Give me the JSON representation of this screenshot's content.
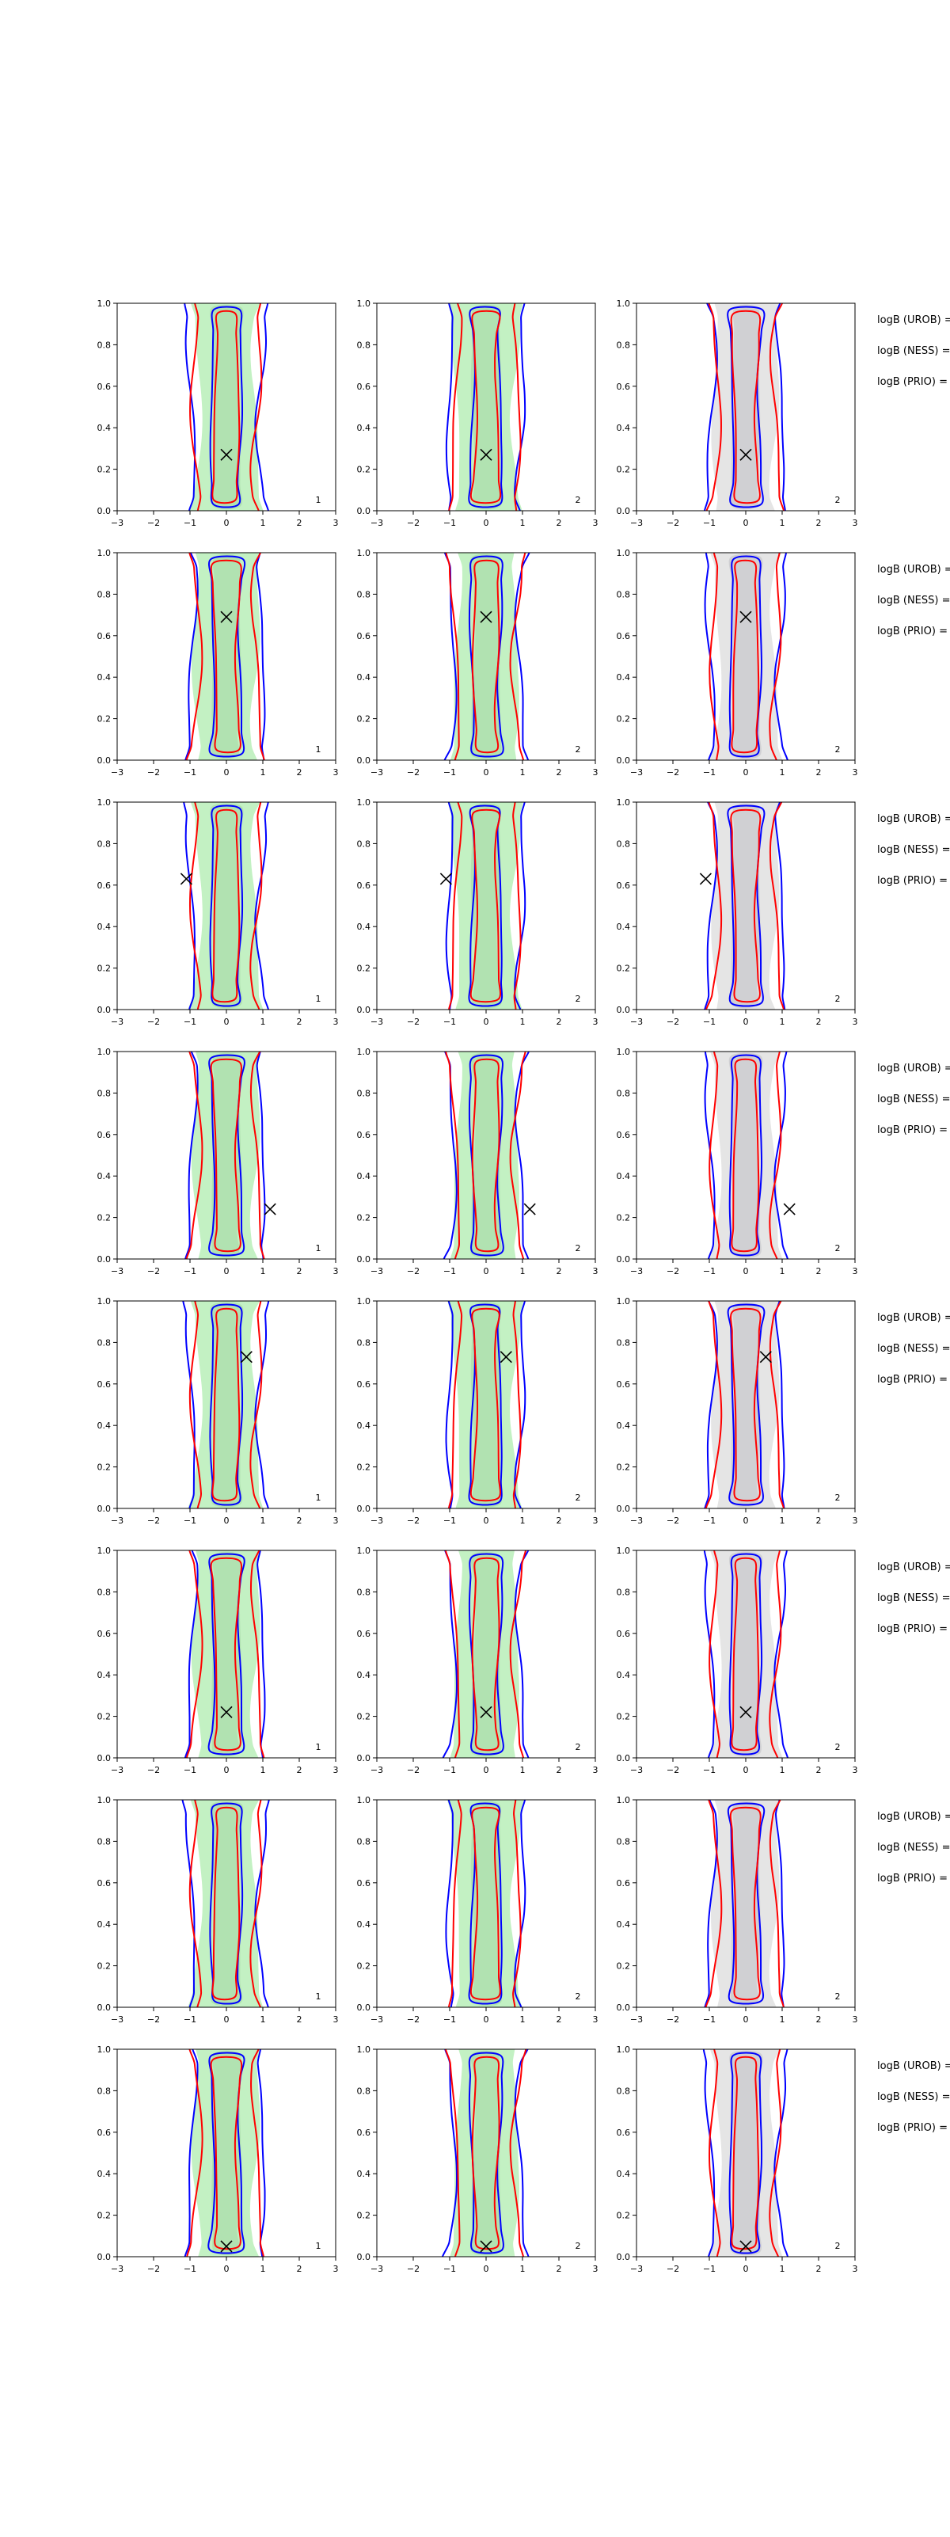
{
  "figure": {
    "rows": 8,
    "cols": 3,
    "xlim": [
      -3,
      3
    ],
    "ylim": [
      0,
      1
    ],
    "xticks": [
      "−3",
      "−2",
      "−1",
      "0",
      "1",
      "2",
      "3"
    ],
    "yticks": [
      "0.0",
      "0.2",
      "0.4",
      "0.6",
      "0.8",
      "1.0"
    ],
    "panel_labels": [
      "1",
      "2",
      "2"
    ],
    "side_labels": [
      "logB (UROB) =",
      "logB (NESS) =",
      "logB (PRIO) ="
    ],
    "colors": {
      "outer_contour": "#0000ff",
      "inner_contour": "#ff0000",
      "fill_col1": "#b9efb9",
      "fill_col2": "#b9efb9",
      "fill_col3": "#dcdcdc",
      "marker": "#000000"
    }
  },
  "chart_data": [
    {
      "type": "contour",
      "panel": "row1-col1",
      "label": "1",
      "marker": {
        "x": 0.0,
        "y": 0.27
      },
      "xlim": [
        -3,
        3
      ],
      "ylim": [
        0,
        1
      ]
    },
    {
      "type": "contour",
      "panel": "row1-col2",
      "label": "2",
      "marker": {
        "x": 0.0,
        "y": 0.27
      },
      "xlim": [
        -3,
        3
      ],
      "ylim": [
        0,
        1
      ]
    },
    {
      "type": "contour",
      "panel": "row1-col3",
      "label": "2",
      "marker": {
        "x": 0.0,
        "y": 0.27
      },
      "xlim": [
        -3,
        3
      ],
      "ylim": [
        0,
        1
      ]
    },
    {
      "type": "contour",
      "panel": "row2-col1",
      "label": "1",
      "marker": {
        "x": 0.0,
        "y": 0.69
      },
      "xlim": [
        -3,
        3
      ],
      "ylim": [
        0,
        1
      ]
    },
    {
      "type": "contour",
      "panel": "row2-col2",
      "label": "2",
      "marker": {
        "x": 0.0,
        "y": 0.69
      },
      "xlim": [
        -3,
        3
      ],
      "ylim": [
        0,
        1
      ]
    },
    {
      "type": "contour",
      "panel": "row2-col3",
      "label": "2",
      "marker": {
        "x": 0.0,
        "y": 0.69
      },
      "xlim": [
        -3,
        3
      ],
      "ylim": [
        0,
        1
      ]
    },
    {
      "type": "contour",
      "panel": "row3-col1",
      "label": "1",
      "marker": {
        "x": -1.1,
        "y": 0.63
      },
      "xlim": [
        -3,
        3
      ],
      "ylim": [
        0,
        1
      ]
    },
    {
      "type": "contour",
      "panel": "row3-col2",
      "label": "2",
      "marker": {
        "x": -1.1,
        "y": 0.63
      },
      "xlim": [
        -3,
        3
      ],
      "ylim": [
        0,
        1
      ]
    },
    {
      "type": "contour",
      "panel": "row3-col3",
      "label": "2",
      "marker": {
        "x": -1.1,
        "y": 0.63
      },
      "xlim": [
        -3,
        3
      ],
      "ylim": [
        0,
        1
      ]
    },
    {
      "type": "contour",
      "panel": "row4-col1",
      "label": "1",
      "marker": {
        "x": 1.2,
        "y": 0.24
      },
      "xlim": [
        -3,
        3
      ],
      "ylim": [
        0,
        1
      ]
    },
    {
      "type": "contour",
      "panel": "row4-col2",
      "label": "2",
      "marker": {
        "x": 1.2,
        "y": 0.24
      },
      "xlim": [
        -3,
        3
      ],
      "ylim": [
        0,
        1
      ]
    },
    {
      "type": "contour",
      "panel": "row4-col3",
      "label": "2",
      "marker": {
        "x": 1.2,
        "y": 0.24
      },
      "xlim": [
        -3,
        3
      ],
      "ylim": [
        0,
        1
      ]
    },
    {
      "type": "contour",
      "panel": "row5-col1",
      "label": "1",
      "marker": {
        "x": 0.55,
        "y": 0.73
      },
      "xlim": [
        -3,
        3
      ],
      "ylim": [
        0,
        1
      ]
    },
    {
      "type": "contour",
      "panel": "row5-col2",
      "label": "2",
      "marker": {
        "x": 0.55,
        "y": 0.73
      },
      "xlim": [
        -3,
        3
      ],
      "ylim": [
        0,
        1
      ]
    },
    {
      "type": "contour",
      "panel": "row5-col3",
      "label": "2",
      "marker": {
        "x": 0.55,
        "y": 0.73
      },
      "xlim": [
        -3,
        3
      ],
      "ylim": [
        0,
        1
      ]
    },
    {
      "type": "contour",
      "panel": "row6-col1",
      "label": "1",
      "marker": {
        "x": 0.0,
        "y": 0.22
      },
      "xlim": [
        -3,
        3
      ],
      "ylim": [
        0,
        1
      ]
    },
    {
      "type": "contour",
      "panel": "row6-col2",
      "label": "2",
      "marker": {
        "x": 0.0,
        "y": 0.22
      },
      "xlim": [
        -3,
        3
      ],
      "ylim": [
        0,
        1
      ]
    },
    {
      "type": "contour",
      "panel": "row6-col3",
      "label": "2",
      "marker": {
        "x": 0.0,
        "y": 0.22
      },
      "xlim": [
        -3,
        3
      ],
      "ylim": [
        0,
        1
      ]
    },
    {
      "type": "contour",
      "panel": "row7-col1",
      "label": "1",
      "marker": null,
      "xlim": [
        -3,
        3
      ],
      "ylim": [
        0,
        1
      ]
    },
    {
      "type": "contour",
      "panel": "row7-col2",
      "label": "2",
      "marker": null,
      "xlim": [
        -3,
        3
      ],
      "ylim": [
        0,
        1
      ]
    },
    {
      "type": "contour",
      "panel": "row7-col3",
      "label": "2",
      "marker": null,
      "xlim": [
        -3,
        3
      ],
      "ylim": [
        0,
        1
      ]
    },
    {
      "type": "contour",
      "panel": "row8-col1",
      "label": "1",
      "marker": {
        "x": 0.0,
        "y": 0.05
      },
      "xlim": [
        -3,
        3
      ],
      "ylim": [
        0,
        1
      ]
    },
    {
      "type": "contour",
      "panel": "row8-col2",
      "label": "2",
      "marker": {
        "x": 0.0,
        "y": 0.05
      },
      "xlim": [
        -3,
        3
      ],
      "ylim": [
        0,
        1
      ]
    },
    {
      "type": "contour",
      "panel": "row8-col3",
      "label": "2",
      "marker": {
        "x": 0.0,
        "y": 0.05
      },
      "xlim": [
        -3,
        3
      ],
      "ylim": [
        0,
        1
      ]
    }
  ]
}
